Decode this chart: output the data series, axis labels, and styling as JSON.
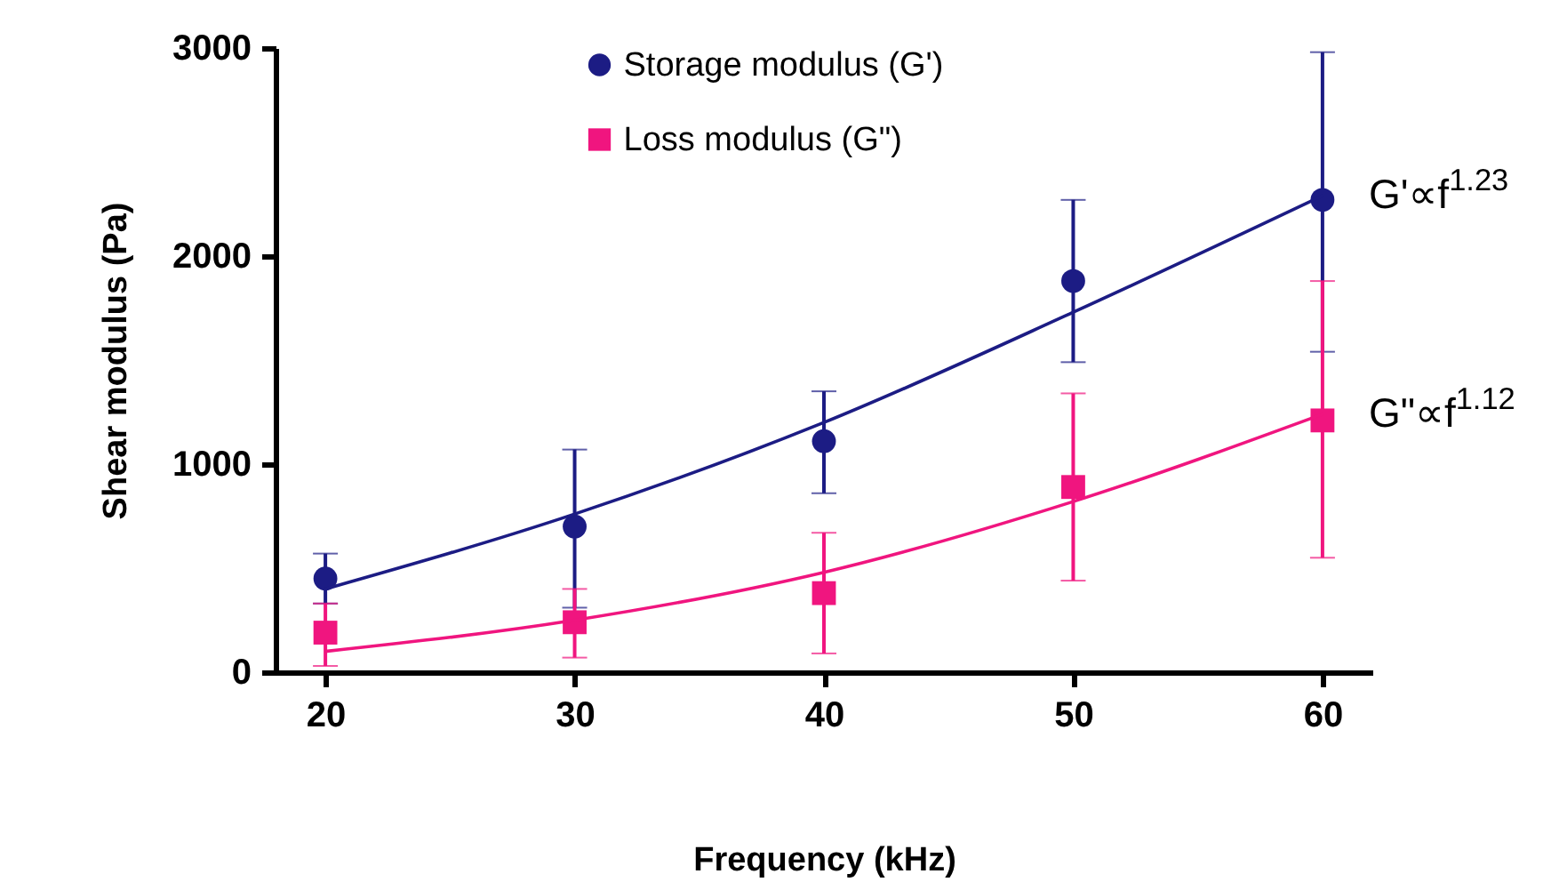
{
  "chart_data": {
    "type": "scatter",
    "xlabel": "Frequency (kHz)",
    "ylabel": "Shear modulus (Pa)",
    "xlim": [
      18,
      62
    ],
    "ylim": [
      0,
      3000
    ],
    "xticks": [
      20,
      30,
      40,
      50,
      60
    ],
    "yticks": [
      0,
      1000,
      2000,
      3000
    ],
    "grid": false,
    "legend": "top",
    "series": [
      {
        "name": "Storage modulus (G')",
        "marker": "circle",
        "color": "#1c1c84",
        "x": [
          20,
          30,
          40,
          50,
          60
        ],
        "values": [
          450,
          700,
          1110,
          1880,
          2270
        ],
        "errors": [
          [
            330,
            570
          ],
          [
            310,
            1070
          ],
          [
            860,
            1350
          ],
          [
            1490,
            2270
          ],
          [
            1540,
            2980
          ]
        ]
      },
      {
        "name": "Loss modulus (G\")",
        "marker": "square",
        "color": "#f0157f",
        "x": [
          20,
          30,
          40,
          50,
          60
        ],
        "values": [
          190,
          240,
          380,
          890,
          1210
        ],
        "errors": [
          [
            30,
            330
          ],
          [
            70,
            400
          ],
          [
            90,
            670
          ],
          [
            440,
            1340
          ],
          [
            550,
            1880
          ]
        ]
      },
      {
        "type": "line",
        "color": "#1c1c84",
        "x": [
          20,
          30,
          40,
          50,
          60
        ],
        "values": [
          400,
          760,
          1200,
          1730,
          2290
        ]
      },
      {
        "type": "line",
        "color": "#f0157f",
        "x": [
          20,
          30,
          40,
          50,
          60
        ],
        "values": [
          100,
          250,
          480,
          820,
          1240
        ]
      }
    ],
    "annotations": [
      {
        "text": "G'∝f$^{1.23}$",
        "x": 60,
        "y": 2290
      },
      {
        "text": "G\"∝f$^{1.12}$",
        "x": 60,
        "y": 1240
      }
    ]
  }
}
